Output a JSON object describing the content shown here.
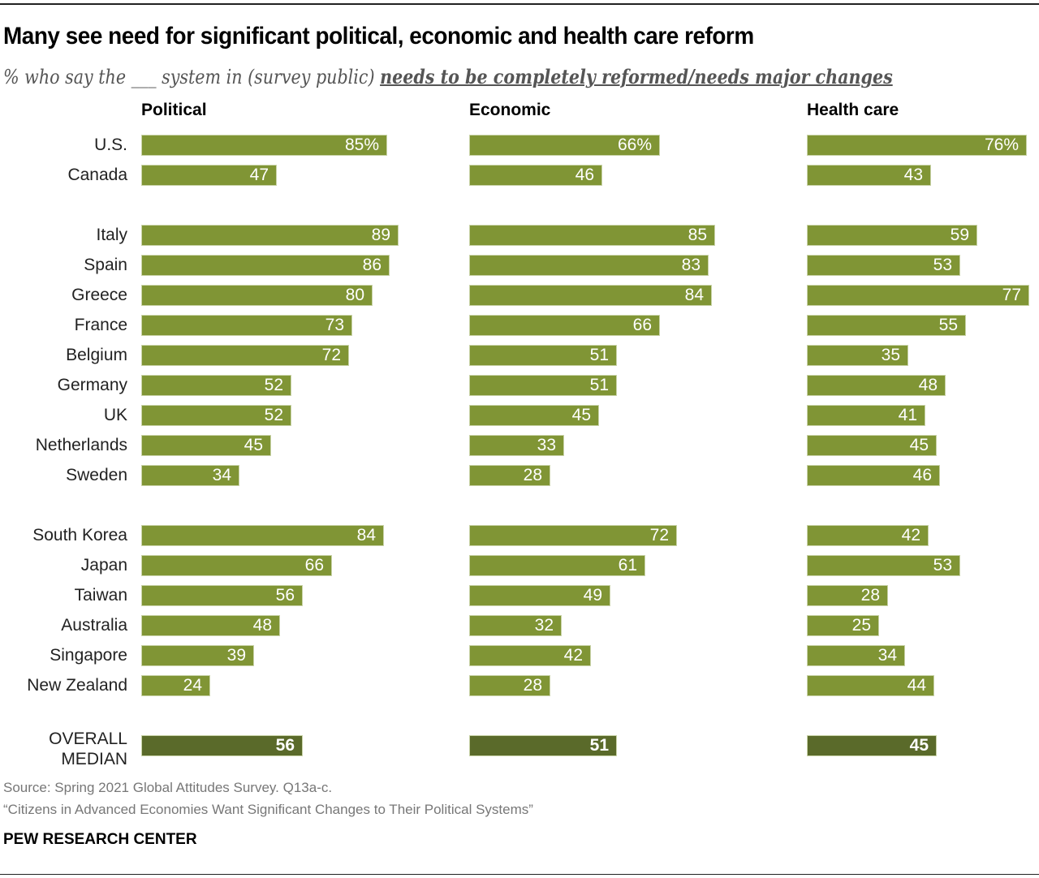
{
  "title": "Many see need for significant political, economic and health care reform",
  "subtitle": {
    "prefix": "% who say the ___ system in (survey public) ",
    "emphasis": "needs to be completely reformed/needs major changes"
  },
  "footer": {
    "source": "Source: Spring 2021 Global Attitudes Survey. Q13a-c.",
    "report": "“Citizens in Advanced Economies Want Significant Changes to Their Political Systems”",
    "brand": "PEW RESEARCH CENTER"
  },
  "colors": {
    "bar": "#809535",
    "median_bar": "#5a6a2a"
  },
  "chart_data": {
    "type": "bar",
    "orientation": "horizontal",
    "title": "Many see need for significant political, economic and health care reform",
    "unit": "%",
    "categories": [
      "U.S.",
      "Canada",
      "Italy",
      "Spain",
      "Greece",
      "France",
      "Belgium",
      "Germany",
      "UK",
      "Netherlands",
      "Sweden",
      "South Korea",
      "Japan",
      "Taiwan",
      "Australia",
      "Singapore",
      "New Zealand",
      "OVERALL MEDIAN"
    ],
    "groups": [
      [
        "U.S.",
        "Canada"
      ],
      [
        "Italy",
        "Spain",
        "Greece",
        "France",
        "Belgium",
        "Germany",
        "UK",
        "Netherlands",
        "Sweden"
      ],
      [
        "South Korea",
        "Japan",
        "Taiwan",
        "Australia",
        "Singapore",
        "New Zealand"
      ],
      [
        "OVERALL MEDIAN"
      ]
    ],
    "series": [
      {
        "name": "Political",
        "values": [
          85,
          47,
          89,
          86,
          80,
          73,
          72,
          52,
          52,
          45,
          34,
          84,
          66,
          56,
          48,
          39,
          24,
          56
        ]
      },
      {
        "name": "Economic",
        "values": [
          66,
          46,
          85,
          83,
          84,
          66,
          51,
          51,
          45,
          33,
          28,
          72,
          61,
          49,
          32,
          42,
          28,
          51
        ]
      },
      {
        "name": "Health care",
        "values": [
          76,
          43,
          59,
          53,
          77,
          55,
          35,
          48,
          41,
          45,
          46,
          42,
          53,
          28,
          25,
          34,
          44,
          45
        ]
      }
    ],
    "first_row_suffix": "%",
    "xlim": [
      0,
      100
    ],
    "grid": false,
    "legend": "none"
  }
}
